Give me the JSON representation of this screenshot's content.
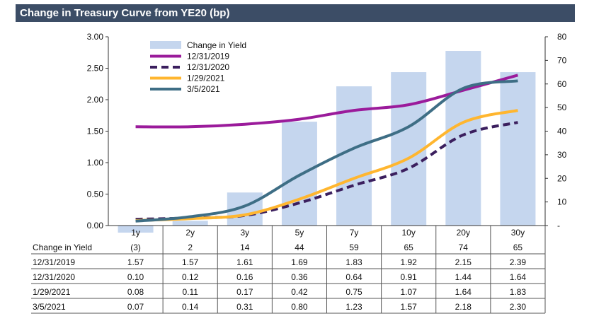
{
  "chart_data": {
    "type": "bar+line",
    "title": "Change in Treasury Curve from YE20 (bp)",
    "categories": [
      "1y",
      "2y",
      "3y",
      "5y",
      "7y",
      "10y",
      "20y",
      "30y"
    ],
    "bar_series": {
      "name": "Change in Yield",
      "axis": "right",
      "values": [
        -3,
        2,
        14,
        44,
        59,
        65,
        74,
        65
      ],
      "display": [
        "(3)",
        "2",
        "14",
        "44",
        "59",
        "65",
        "74",
        "65"
      ],
      "color": "#c5d6ee"
    },
    "line_series": [
      {
        "name": "12/31/2019",
        "values": [
          1.57,
          1.57,
          1.61,
          1.69,
          1.83,
          1.92,
          2.15,
          2.39
        ],
        "display": [
          "1.57",
          "1.57",
          "1.61",
          "1.69",
          "1.83",
          "1.92",
          "2.15",
          "2.39"
        ],
        "color": "#9b1b9b",
        "dashed": false
      },
      {
        "name": "12/31/2020",
        "values": [
          0.1,
          0.12,
          0.16,
          0.36,
          0.64,
          0.91,
          1.44,
          1.64
        ],
        "display": [
          "0.10",
          "0.12",
          "0.16",
          "0.36",
          "0.64",
          "0.91",
          "1.44",
          "1.64"
        ],
        "color": "#3b1f5e",
        "dashed": true
      },
      {
        "name": "1/29/2021",
        "values": [
          0.08,
          0.11,
          0.17,
          0.42,
          0.75,
          1.07,
          1.64,
          1.83
        ],
        "display": [
          "0.08",
          "0.11",
          "0.17",
          "0.42",
          "0.75",
          "1.07",
          "1.64",
          "1.83"
        ],
        "color": "#ffb62f",
        "dashed": false
      },
      {
        "name": "3/5/2021",
        "values": [
          0.07,
          0.14,
          0.31,
          0.8,
          1.23,
          1.57,
          2.18,
          2.3
        ],
        "display": [
          "0.07",
          "0.14",
          "0.31",
          "0.80",
          "1.23",
          "1.57",
          "2.18",
          "2.30"
        ],
        "color": "#3e6e85",
        "dashed": false
      }
    ],
    "y_left": {
      "min": 0,
      "max": 3,
      "ticks": [
        "0.00",
        "0.50",
        "1.00",
        "1.50",
        "2.00",
        "2.50",
        "3.00"
      ]
    },
    "y_right": {
      "min": 0,
      "max": 80,
      "ticks": [
        "-",
        "10",
        "20",
        "30",
        "40",
        "50",
        "60",
        "70",
        "80"
      ]
    },
    "legend_position": "top-left",
    "table_row_label": "Change in Yield",
    "grid": false
  }
}
